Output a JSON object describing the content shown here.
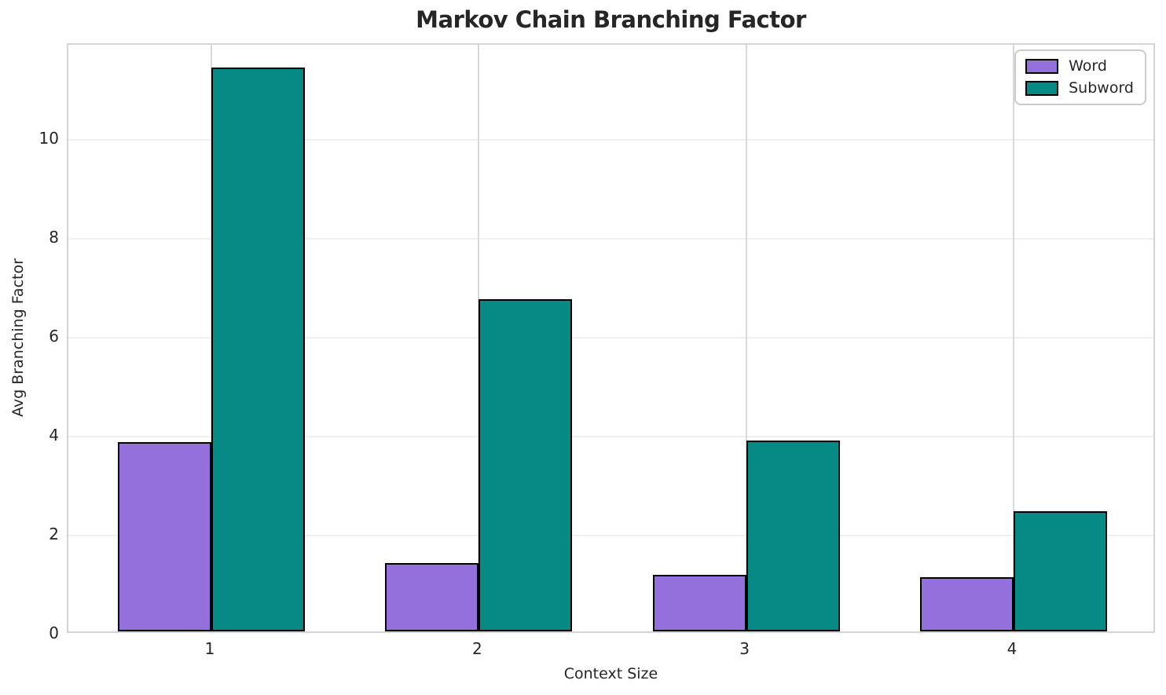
{
  "chart_data": {
    "type": "bar",
    "title": "Markov Chain Branching Factor",
    "xlabel": "Context Size",
    "ylabel": "Avg Branching Factor",
    "categories": [
      "1",
      "2",
      "3",
      "4"
    ],
    "series": [
      {
        "name": "Word",
        "color": "#9370DB",
        "values": [
          3.83,
          1.38,
          1.14,
          1.09
        ]
      },
      {
        "name": "Subword",
        "color": "#078A85",
        "values": [
          11.39,
          6.72,
          3.86,
          2.43
        ]
      }
    ],
    "yticks": [
      0,
      2,
      4,
      6,
      8,
      10
    ],
    "ylim": [
      0,
      11.92
    ],
    "bar_width": 0.35,
    "bar_edge_color": "#000000",
    "grid": true,
    "legend_position": "upper right"
  },
  "colors": {
    "horizontal_grid": "#efefef",
    "vertical_grid": "#d9d9d9",
    "spine": "#d4d4d4",
    "text": "#262626",
    "background": "#ffffff"
  }
}
